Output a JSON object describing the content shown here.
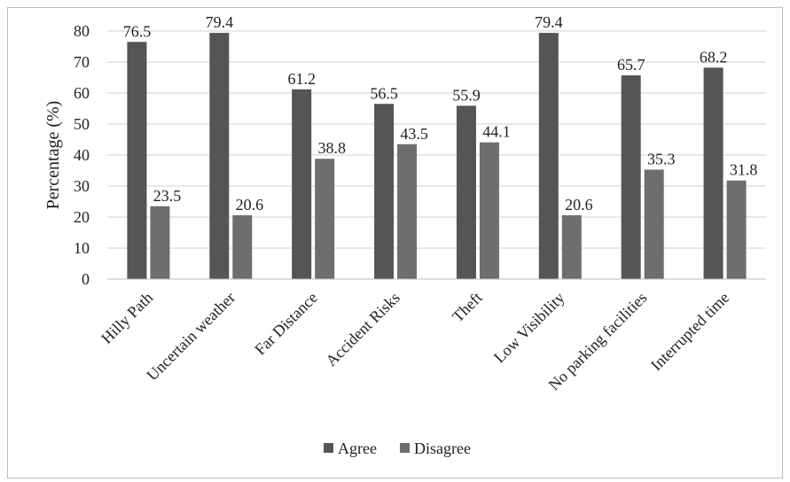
{
  "chart_data": {
    "type": "bar",
    "title": "",
    "xlabel": "",
    "ylabel": "Percentage (%)",
    "ylim": [
      0,
      80
    ],
    "yticks": [
      0,
      10,
      20,
      30,
      40,
      50,
      60,
      70,
      80
    ],
    "grid": true,
    "legend_position": "bottom",
    "categories": [
      "Hilly Path",
      "Uncertain weather",
      "Far Distance",
      "Accident Risks",
      "Theft",
      "Low Visibility",
      "No parking facilities",
      "Interrupted time"
    ],
    "series": [
      {
        "name": "Agree",
        "color": "#555555",
        "values": [
          76.5,
          79.4,
          61.2,
          56.5,
          55.9,
          79.4,
          65.7,
          68.2
        ]
      },
      {
        "name": "Disagree",
        "color": "#6e6e6e",
        "values": [
          23.5,
          20.6,
          38.8,
          43.5,
          44.1,
          20.6,
          35.3,
          31.8
        ]
      }
    ],
    "data_labels": [
      [
        "76.5",
        "79.4",
        "61.2",
        "56.5",
        "55.9",
        "79.4",
        "65.7",
        "68.2"
      ],
      [
        "23.5",
        "20.6",
        "38.8",
        "43.5",
        "44.1",
        "20.6",
        "35.3",
        "31.8"
      ]
    ],
    "ytick_labels": [
      "0",
      "10",
      "20",
      "30",
      "40",
      "50",
      "60",
      "70",
      "80"
    ]
  }
}
